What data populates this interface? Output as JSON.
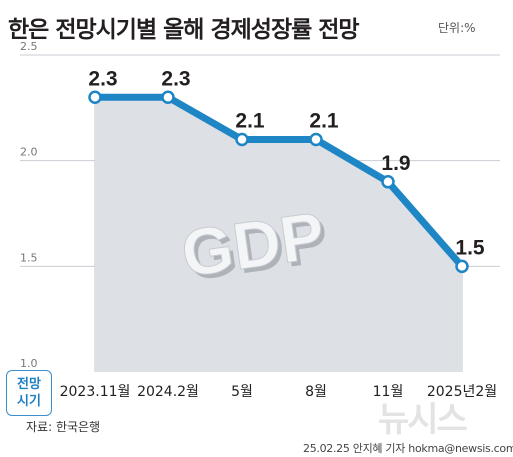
{
  "header": {
    "title": "한은 전망시기별 올해 경제성장률 전망",
    "unit": "단위:%"
  },
  "badge": {
    "line1": "전망",
    "line2": "시기"
  },
  "footer": {
    "source": "자료: 한국은행",
    "credit": "25.02.25 안지혜 기자 hokma@newsis.com"
  },
  "watermark": "뉴시스",
  "colors": {
    "line": "#1f86c6",
    "area": "#dde0e5",
    "grid": "#c9cdd3",
    "badge": "#1f7fc4"
  },
  "chart_data": {
    "type": "area",
    "categories": [
      "2023.11월",
      "2024.2월",
      "5월",
      "8월",
      "11월",
      "2025년2월"
    ],
    "values": [
      2.3,
      2.3,
      2.1,
      2.1,
      1.9,
      1.5
    ],
    "value_labels": [
      "2.3",
      "2.3",
      "2.1",
      "2.1",
      "1.9",
      "1.5"
    ],
    "y_ticks": [
      "2.5",
      "2.0",
      "1.5",
      "1.0"
    ],
    "y_tick_values": [
      2.5,
      2.0,
      1.5,
      1.0
    ],
    "ylim": [
      1.0,
      2.5
    ],
    "annotation": "GDP",
    "grid": true
  }
}
